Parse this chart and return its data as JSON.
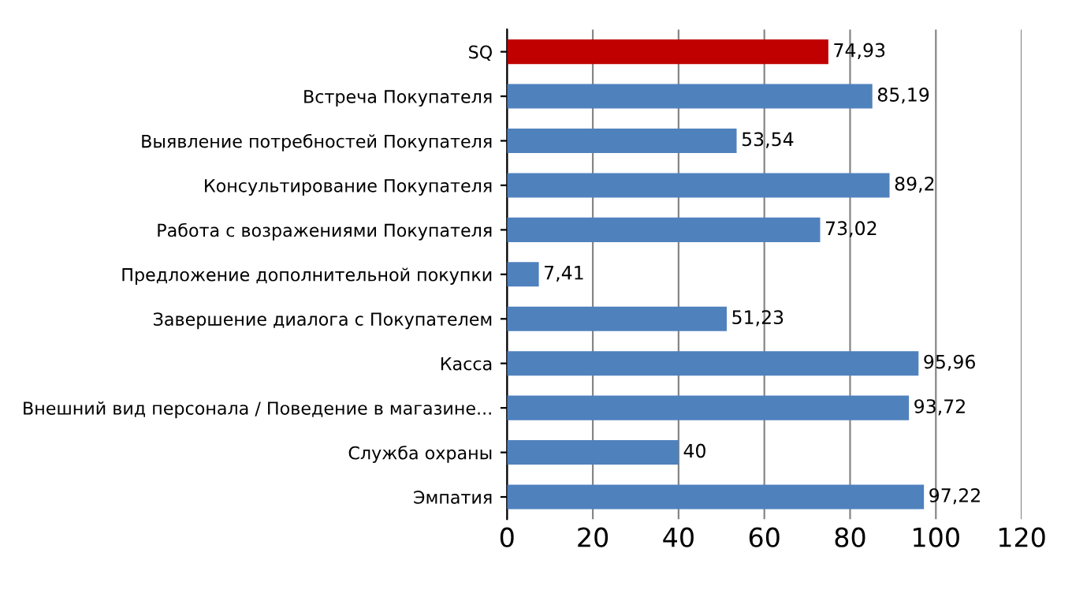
{
  "chart_data": {
    "type": "bar",
    "orientation": "horizontal",
    "categories": [
      "SQ",
      "Встреча Покупателя",
      "Выявление потребностей Покупателя",
      "Консультирование Покупателя",
      "Работа с возражениями Покупателя",
      "Предложение дополнительной покупки",
      "Завершение диалога с Покупателем",
      "Касса",
      "Внешний вид персонала / Поведение в магазине...",
      "Служба охраны",
      "Эмпатия"
    ],
    "values": [
      74.93,
      85.19,
      53.54,
      89.2,
      73.02,
      7.41,
      51.23,
      95.96,
      93.72,
      40,
      97.22
    ],
    "value_labels": [
      "74,93",
      "85,19",
      "53,54",
      "89,2",
      "73,02",
      "7,41",
      "51,23",
      "95,96",
      "93,72",
      "40",
      "97,22"
    ],
    "colors": [
      "#c00000",
      "#4f81bd",
      "#4f81bd",
      "#4f81bd",
      "#4f81bd",
      "#4f81bd",
      "#4f81bd",
      "#4f81bd",
      "#4f81bd",
      "#4f81bd",
      "#4f81bd"
    ],
    "xlim": [
      0,
      120
    ],
    "xticks": [
      0,
      20,
      40,
      60,
      80,
      100,
      120
    ],
    "grid": "x",
    "legend": false
  }
}
